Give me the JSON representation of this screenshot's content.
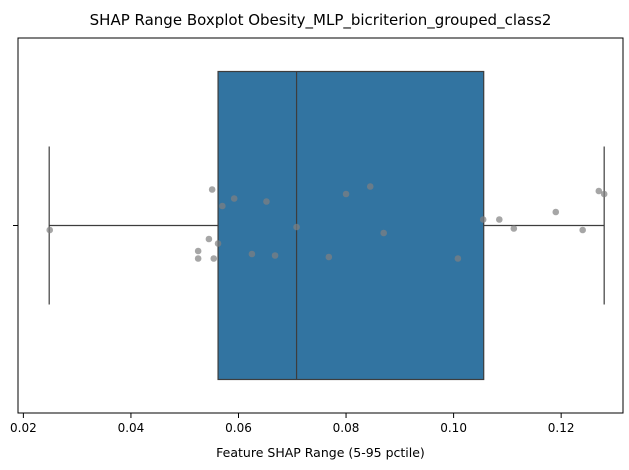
{
  "chart_data": {
    "type": "boxplot",
    "title": "SHAP Range Boxplot Obesity_MLP_bicriterion_grouped_class2",
    "xlabel": "Feature SHAP Range (5-95 pctile)",
    "ylabel": "",
    "xlim": [
      0.019,
      0.1315
    ],
    "x_ticks": [
      0.02,
      0.04,
      0.06,
      0.08,
      0.1,
      0.12
    ],
    "x_tick_labels": [
      "0.02",
      "0.04",
      "0.06",
      "0.08",
      "0.10",
      "0.12"
    ],
    "box": {
      "whisker_low": 0.0248,
      "q1": 0.0562,
      "median": 0.0708,
      "q3": 0.1056,
      "whisker_high": 0.128
    },
    "points": [
      {
        "x": 0.0249,
        "jitter": 0.03
      },
      {
        "x": 0.0525,
        "jitter": 0.17
      },
      {
        "x": 0.0525,
        "jitter": 0.22
      },
      {
        "x": 0.0545,
        "jitter": 0.09
      },
      {
        "x": 0.0551,
        "jitter": -0.24
      },
      {
        "x": 0.0554,
        "jitter": 0.22
      },
      {
        "x": 0.0562,
        "jitter": 0.12
      },
      {
        "x": 0.057,
        "jitter": -0.13
      },
      {
        "x": 0.0592,
        "jitter": -0.18
      },
      {
        "x": 0.0625,
        "jitter": 0.19
      },
      {
        "x": 0.0652,
        "jitter": -0.16
      },
      {
        "x": 0.0668,
        "jitter": 0.2
      },
      {
        "x": 0.0708,
        "jitter": 0.01
      },
      {
        "x": 0.0768,
        "jitter": 0.21
      },
      {
        "x": 0.08,
        "jitter": -0.21
      },
      {
        "x": 0.0845,
        "jitter": -0.26
      },
      {
        "x": 0.087,
        "jitter": 0.05
      },
      {
        "x": 0.1008,
        "jitter": 0.22
      },
      {
        "x": 0.1055,
        "jitter": -0.04
      },
      {
        "x": 0.1085,
        "jitter": -0.04
      },
      {
        "x": 0.1112,
        "jitter": 0.02
      },
      {
        "x": 0.119,
        "jitter": -0.09
      },
      {
        "x": 0.124,
        "jitter": 0.03
      },
      {
        "x": 0.127,
        "jitter": -0.23
      },
      {
        "x": 0.128,
        "jitter": -0.21
      }
    ],
    "colors": {
      "box_fill": "#3274a1",
      "box_edge": "#3d3d3d",
      "point": "#808080"
    },
    "grid": false
  }
}
